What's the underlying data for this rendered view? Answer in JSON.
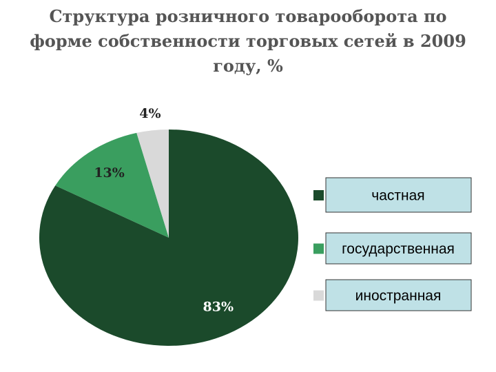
{
  "chart_data": {
    "type": "pie",
    "title": "Структура розничного товарооборота по\nформе собственности торговых сетей в 2009\nгоду, %",
    "categories": [
      "частная",
      "государственная",
      "иностранная"
    ],
    "values": [
      83,
      13,
      4
    ],
    "value_labels": [
      "83%",
      "13%",
      "4%"
    ],
    "colors": [
      "#1b4a2b",
      "#3a9e5f",
      "#d9d9d9"
    ],
    "legend": "right"
  }
}
